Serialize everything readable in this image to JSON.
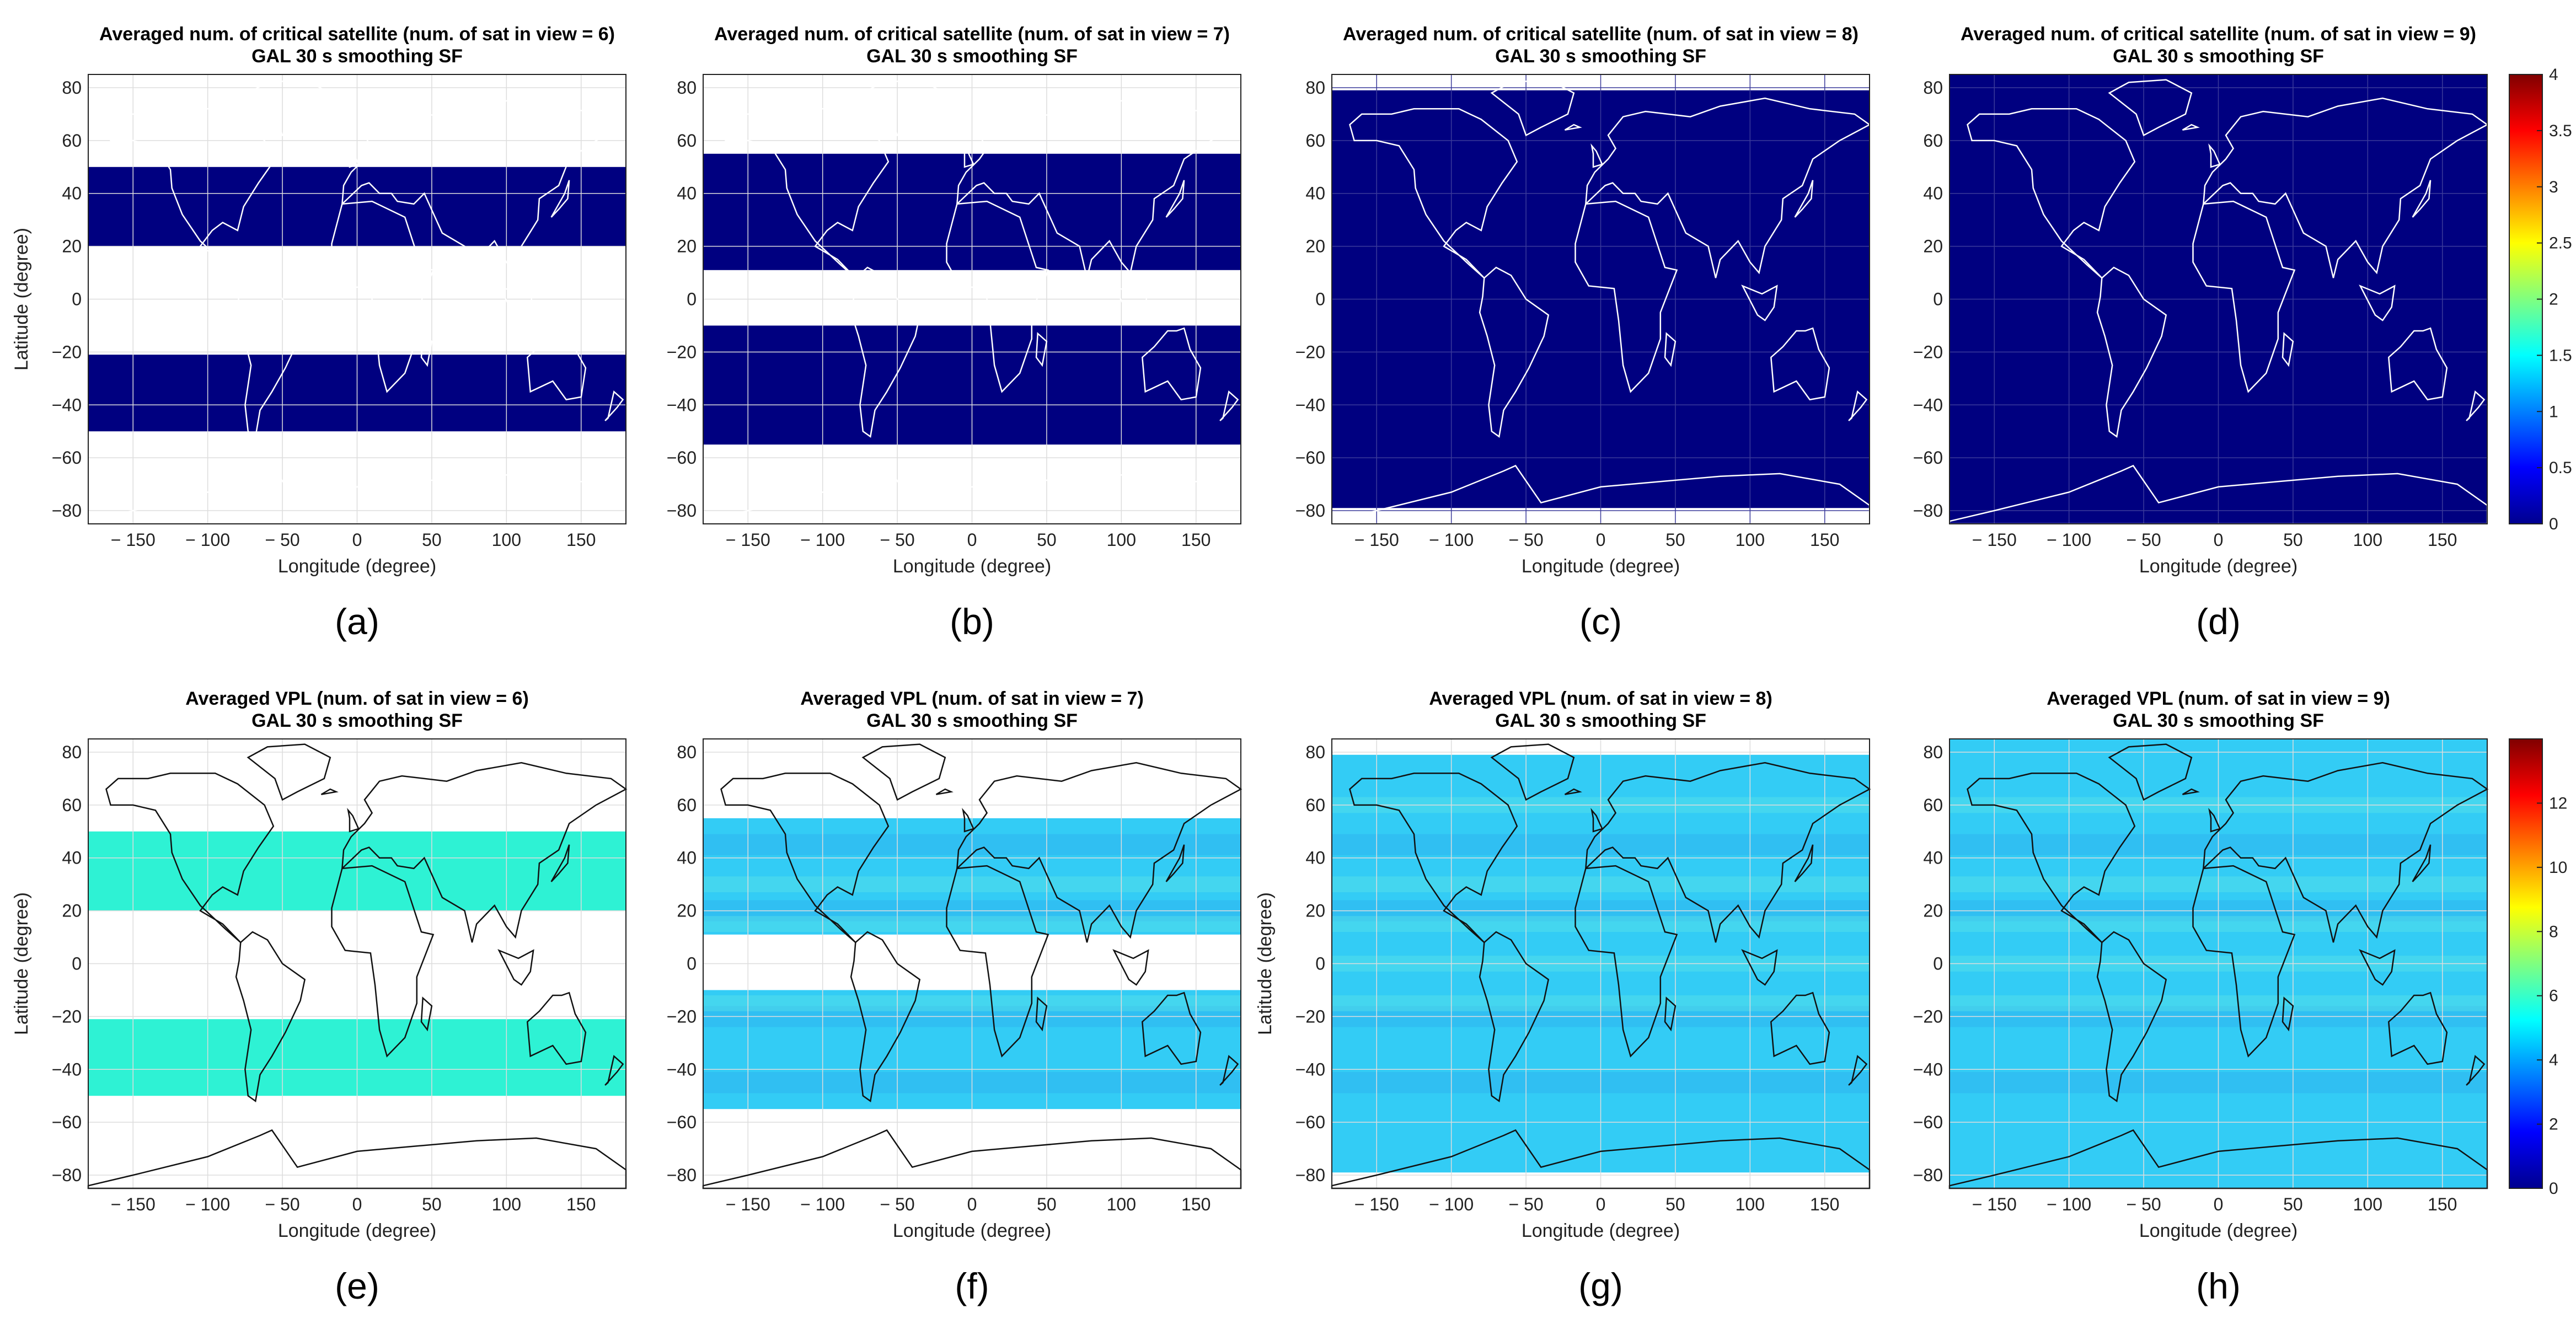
{
  "figure": {
    "coverage_color": "#000080",
    "vpl_color_6": "#2ef2d4",
    "vpl_color_base": "#33ccf5",
    "coastline_color": "#111111"
  },
  "chart_data": [
    {
      "id": "a",
      "panel_label": "(a)",
      "type": "heatmap",
      "title_line1": "Averaged num. of critical satellite (num. of sat in view = 6)",
      "title_line2": "GAL 30 s smoothing SF",
      "xlabel": "Longitude (degree)",
      "ylabel": "Latitude (degree)",
      "xlim": [
        -180,
        180
      ],
      "ylim": [
        -85,
        85
      ],
      "xticks": [
        -150,
        -100,
        -50,
        0,
        50,
        100,
        150
      ],
      "yticks": [
        80,
        60,
        40,
        20,
        0,
        -20,
        -40,
        -60,
        -80
      ],
      "grid": true,
      "value": 0,
      "coverage_bands": [
        [
          -50,
          -21
        ],
        [
          20,
          50
        ]
      ]
    },
    {
      "id": "b",
      "panel_label": "(b)",
      "type": "heatmap",
      "title_line1": "Averaged num. of critical satellite (num. of sat in view = 7)",
      "title_line2": "GAL 30 s smoothing SF",
      "xlabel": "Longitude (degree)",
      "ylabel": "",
      "xlim": [
        -180,
        180
      ],
      "ylim": [
        -85,
        85
      ],
      "xticks": [
        -150,
        -100,
        -50,
        0,
        50,
        100,
        150
      ],
      "yticks": [
        80,
        60,
        40,
        20,
        0,
        -20,
        -40,
        -60,
        -80
      ],
      "grid": true,
      "value": 0,
      "coverage_bands": [
        [
          -55,
          -10
        ],
        [
          11,
          55
        ]
      ]
    },
    {
      "id": "c",
      "panel_label": "(c)",
      "type": "heatmap",
      "title_line1": "Averaged num. of critical satellite (num. of sat in view = 8)",
      "title_line2": "GAL 30 s smoothing SF",
      "xlabel": "Longitude (degree)",
      "ylabel": "",
      "xlim": [
        -180,
        180
      ],
      "ylim": [
        -85,
        85
      ],
      "xticks": [
        -150,
        -100,
        -50,
        0,
        50,
        100,
        150
      ],
      "yticks": [
        80,
        60,
        40,
        20,
        0,
        -20,
        -40,
        -60,
        -80
      ],
      "grid": true,
      "value": 0,
      "coverage_bands": [
        [
          -79,
          79
        ]
      ]
    },
    {
      "id": "d",
      "panel_label": "(d)",
      "type": "heatmap",
      "title_line1": "Averaged num. of critical satellite (num. of sat in view = 9)",
      "title_line2": "GAL 30 s smoothing SF",
      "xlabel": "Longitude (degree)",
      "ylabel": "",
      "xlim": [
        -180,
        180
      ],
      "ylim": [
        -85,
        85
      ],
      "xticks": [
        -150,
        -100,
        -50,
        0,
        50,
        100,
        150
      ],
      "yticks": [
        80,
        60,
        40,
        20,
        0,
        -20,
        -40,
        -60,
        -80
      ],
      "grid": true,
      "value": 0,
      "coverage_bands": [
        [
          -85,
          85
        ]
      ],
      "colorbar": {
        "min": 0,
        "max": 4,
        "ticks": [
          "4",
          "3.5",
          "3",
          "2.5",
          "2",
          "1.5",
          "1",
          "0.5",
          "0"
        ]
      }
    },
    {
      "id": "e",
      "panel_label": "(e)",
      "type": "heatmap",
      "title_line1": "Averaged VPL (num. of sat in view = 6)",
      "title_line2": "GAL 30 s smoothing SF",
      "xlabel": "Longitude (degree)",
      "ylabel": "Latitude (degree)",
      "xlim": [
        -180,
        180
      ],
      "ylim": [
        -85,
        85
      ],
      "xticks": [
        -150,
        -100,
        -50,
        0,
        50,
        100,
        150
      ],
      "yticks": [
        80,
        60,
        40,
        20,
        0,
        -20,
        -40,
        -60,
        -80
      ],
      "grid": true,
      "approx_value": 5.6,
      "coverage_bands": [
        [
          -50,
          -21
        ],
        [
          20,
          50
        ]
      ]
    },
    {
      "id": "f",
      "panel_label": "(f)",
      "type": "heatmap",
      "title_line1": "Averaged VPL (num. of sat in view = 7)",
      "title_line2": "GAL 30 s smoothing SF",
      "xlabel": "Longitude (degree)",
      "ylabel": "",
      "xlim": [
        -180,
        180
      ],
      "ylim": [
        -85,
        85
      ],
      "xticks": [
        -150,
        -100,
        -50,
        0,
        50,
        100,
        150
      ],
      "yticks": [
        80,
        60,
        40,
        20,
        0,
        -20,
        -40,
        -60,
        -80
      ],
      "grid": true,
      "approx_value": 5,
      "coverage_bands": [
        [
          -55,
          -10
        ],
        [
          11,
          55
        ]
      ]
    },
    {
      "id": "g",
      "panel_label": "(g)",
      "type": "heatmap",
      "title_line1": "Averaged VPL (num. of sat in view = 8)",
      "title_line2": "GAL 30 s smoothing SF",
      "xlabel": "Longitude (degree)",
      "ylabel": "Latitude (degree)",
      "xlim": [
        -180,
        180
      ],
      "ylim": [
        -85,
        85
      ],
      "xticks": [
        -150,
        -100,
        -50,
        0,
        50,
        100,
        150
      ],
      "yticks": [
        80,
        60,
        40,
        20,
        0,
        -20,
        -40,
        -60,
        -80
      ],
      "grid": true,
      "approx_value": 5.3,
      "coverage_bands": [
        [
          -79,
          79
        ]
      ]
    },
    {
      "id": "h",
      "panel_label": "(h)",
      "type": "heatmap",
      "title_line1": "Averaged VPL (num. of sat in view = 9)",
      "title_line2": "GAL 30 s smoothing SF",
      "xlabel": "Longitude (degree)",
      "ylabel": "",
      "xlim": [
        -180,
        180
      ],
      "ylim": [
        -85,
        85
      ],
      "xticks": [
        -150,
        -100,
        -50,
        0,
        50,
        100,
        150
      ],
      "yticks": [
        80,
        60,
        40,
        20,
        0,
        -20,
        -40,
        -60,
        -80
      ],
      "grid": true,
      "approx_value": 4.8,
      "coverage_bands": [
        [
          -85,
          85
        ]
      ],
      "colorbar": {
        "min": 0,
        "max": 14,
        "ticks": [
          "12",
          "10",
          "8",
          "6",
          "4",
          "2",
          "0"
        ]
      }
    }
  ]
}
